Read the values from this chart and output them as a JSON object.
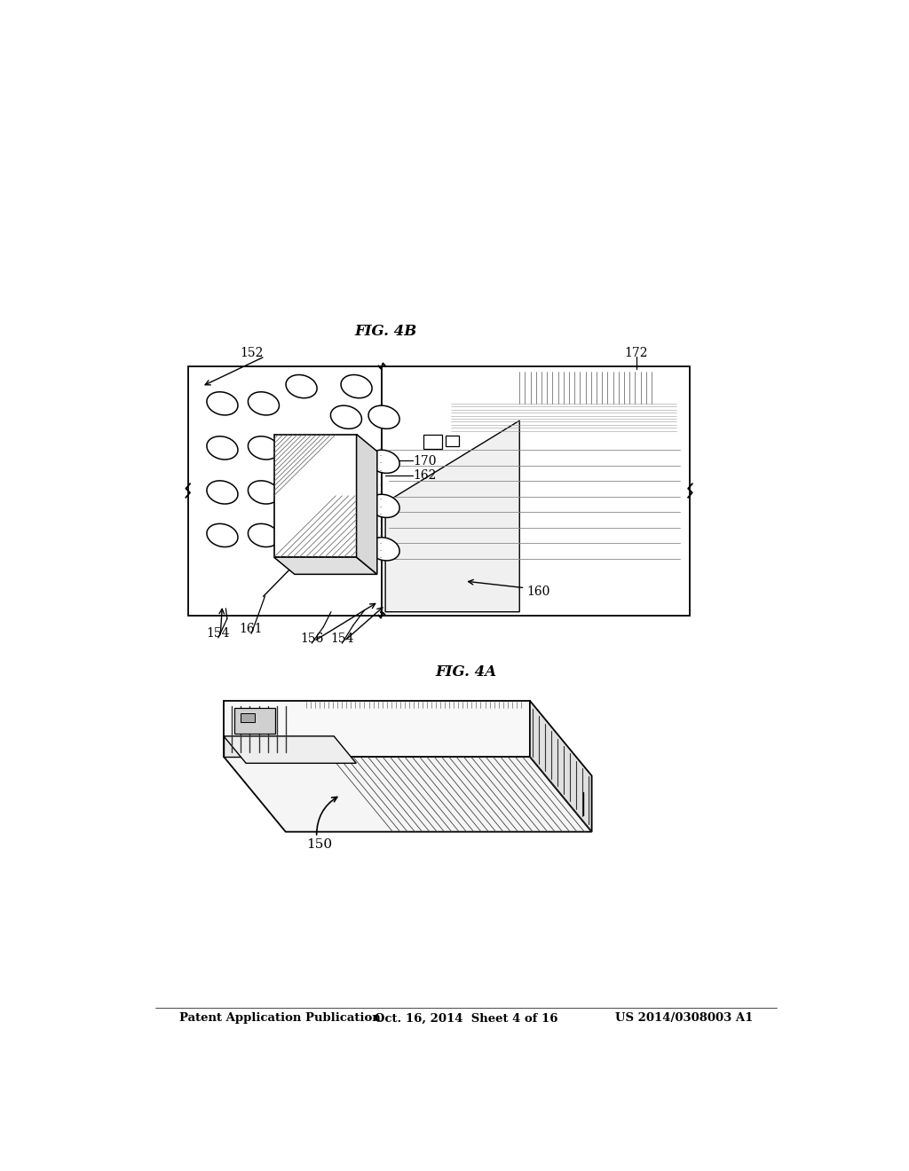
{
  "background_color": "#ffffff",
  "header_left": "Patent Application Publication",
  "header_center": "Oct. 16, 2014  Sheet 4 of 16",
  "header_right": "US 2014/0308003 A1",
  "fig4a_label": "FIG. 4A",
  "fig4b_label": "FIG. 4B"
}
